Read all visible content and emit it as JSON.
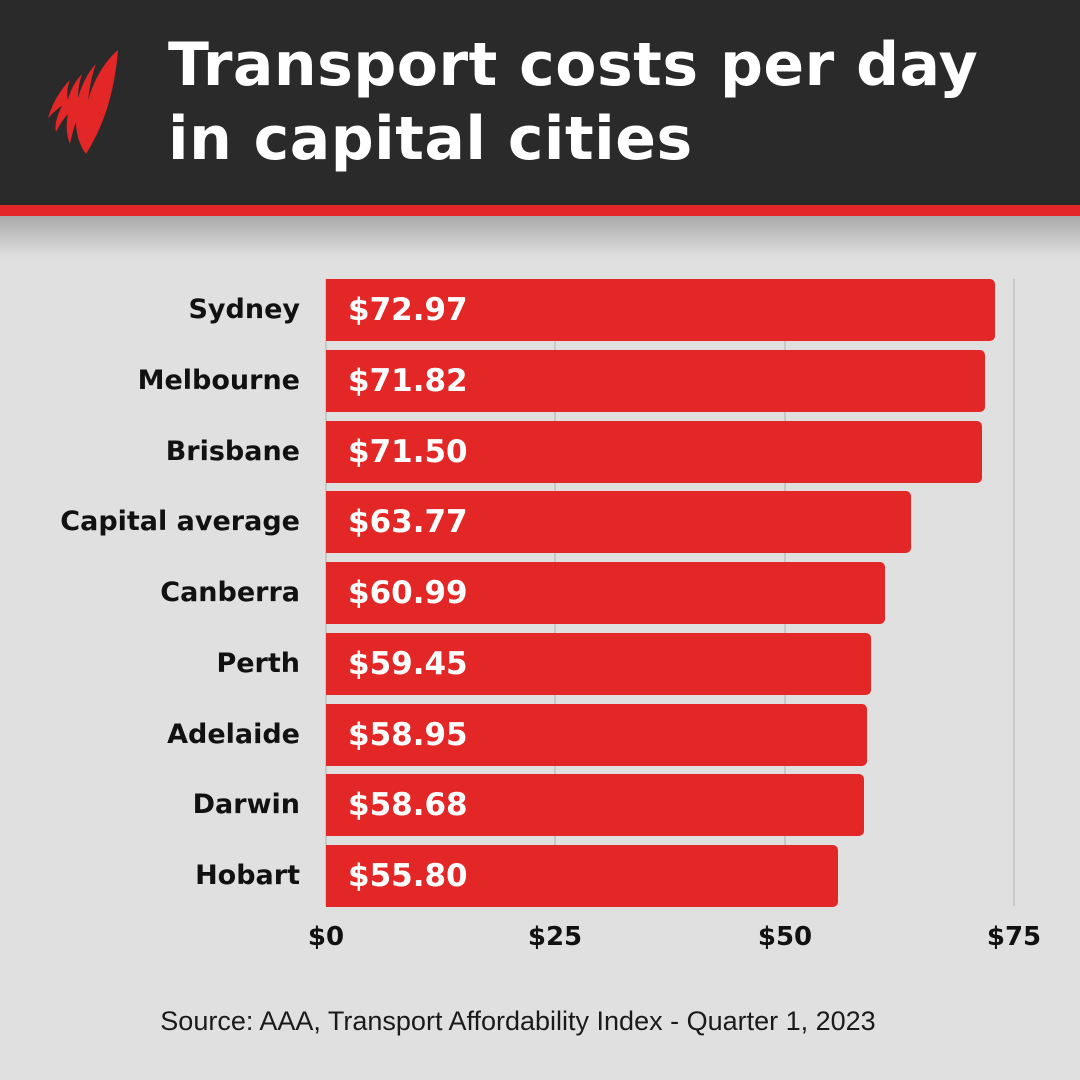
{
  "header": {
    "title_line1": "Transport costs per day",
    "title_line2": "in capital cities",
    "logo": "sbs-logo-icon",
    "accent_color": "#e32726",
    "background_color": "#2b2a2a"
  },
  "bars": [
    {
      "label": "Sydney",
      "value": 72.97,
      "display": "$72.97"
    },
    {
      "label": "Melbourne",
      "value": 71.82,
      "display": "$71.82"
    },
    {
      "label": "Brisbane",
      "value": 71.5,
      "display": "$71.50"
    },
    {
      "label": "Capital average",
      "value": 63.77,
      "display": "$63.77"
    },
    {
      "label": "Canberra",
      "value": 60.99,
      "display": "$60.99"
    },
    {
      "label": "Perth",
      "value": 59.45,
      "display": "$59.45"
    },
    {
      "label": "Adelaide",
      "value": 58.95,
      "display": "$58.95"
    },
    {
      "label": "Darwin",
      "value": 58.68,
      "display": "$58.68"
    },
    {
      "label": "Hobart",
      "value": 55.8,
      "display": "$55.80"
    }
  ],
  "axis": {
    "ticks": [
      {
        "value": 0,
        "label": "$0"
      },
      {
        "value": 25,
        "label": "$25"
      },
      {
        "value": 50,
        "label": "$50"
      },
      {
        "value": 75,
        "label": "$75"
      }
    ]
  },
  "footer": {
    "source": "Source: AAA, Transport Affordability Index - Quarter 1, 2023"
  },
  "chart_data": {
    "type": "bar",
    "orientation": "horizontal",
    "title": "Transport costs per day in capital cities",
    "categories": [
      "Sydney",
      "Melbourne",
      "Brisbane",
      "Capital average",
      "Canberra",
      "Perth",
      "Adelaide",
      "Darwin",
      "Hobart"
    ],
    "values": [
      72.97,
      71.82,
      71.5,
      63.77,
      60.99,
      59.45,
      58.95,
      58.68,
      55.8
    ],
    "data_labels": [
      "$72.97",
      "$71.82",
      "$71.50",
      "$63.77",
      "$60.99",
      "$59.45",
      "$58.95",
      "$58.68",
      "$55.80"
    ],
    "xlabel": "",
    "ylabel": "",
    "xlim": [
      0,
      75
    ],
    "x_ticks": [
      "$0",
      "$25",
      "$50",
      "$75"
    ],
    "grid": true,
    "legend": null,
    "bar_color": "#e32726",
    "annotations": [
      "Source: AAA, Transport Affordability Index - Quarter 1, 2023"
    ]
  }
}
